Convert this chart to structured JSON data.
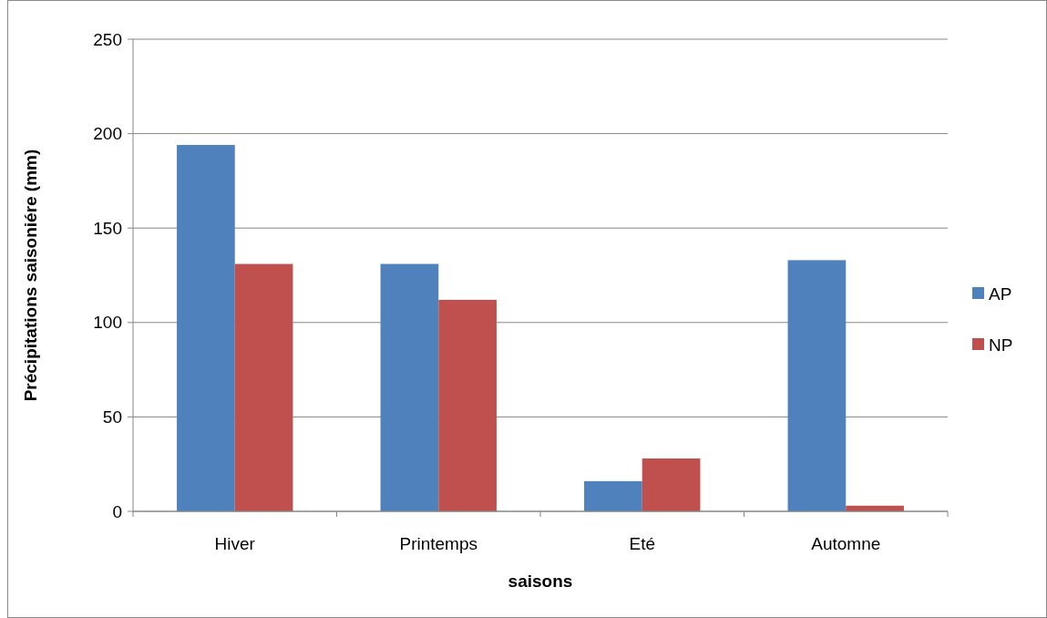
{
  "chart_data": {
    "type": "bar",
    "xlabel": "saisons",
    "ylabel": "Précipitations saisoniére (mm)",
    "categories": [
      "Hiver",
      "Printemps",
      "Eté",
      "Automne"
    ],
    "series": [
      {
        "name": "AP",
        "color": "#4f81bd",
        "values": [
          194,
          131,
          16,
          133
        ]
      },
      {
        "name": "NP",
        "color": "#c0504d",
        "values": [
          131,
          112,
          28,
          3
        ]
      }
    ],
    "ylim": [
      0,
      250
    ],
    "yticks": [
      0,
      50,
      100,
      150,
      200,
      250
    ],
    "grid": "y",
    "legend": "right"
  }
}
